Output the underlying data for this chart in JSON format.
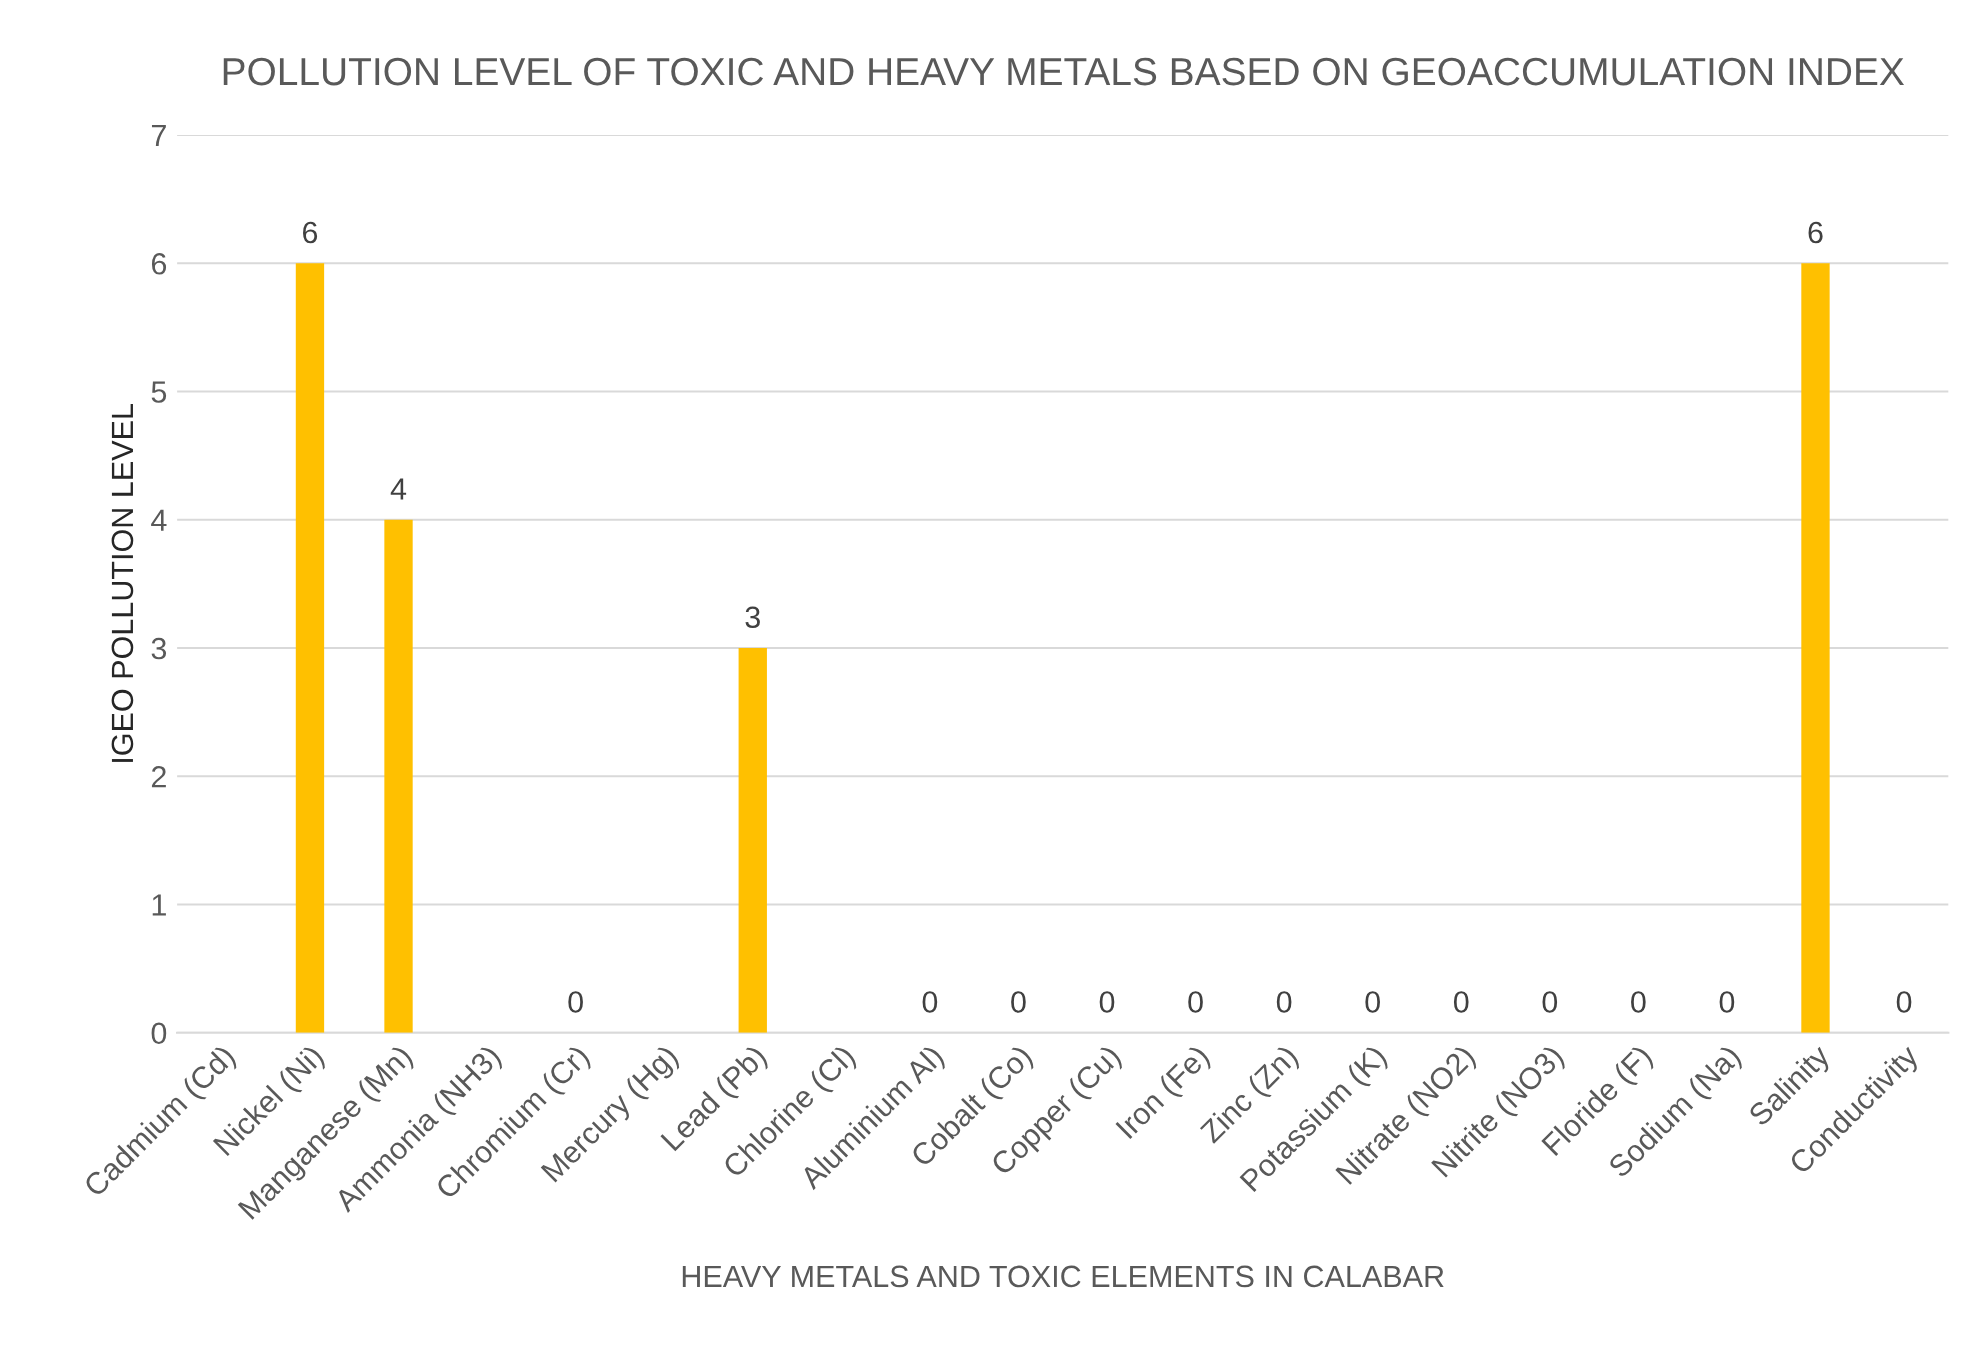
{
  "chart_data": {
    "type": "bar",
    "title": "POLLUTION LEVEL OF TOXIC AND HEAVY METALS BASED ON GEOACCUMULATION INDEX",
    "xlabel": "HEAVY METALS AND TOXIC ELEMENTS IN CALABAR",
    "ylabel": "IGEO POLLUTION LEVEL",
    "categories": [
      "Cadmium (Cd)",
      "Nickel (Ni)",
      "Manganese (Mn)",
      "Ammonia (NH3)",
      "Chromium (Cr)",
      "Mercury (Hg)",
      "Lead (Pb)",
      "Chlorine (Cl)",
      "Aluminium Al)",
      "Cobalt (Co)",
      "Copper (Cu)",
      "Iron (Fe)",
      "Zinc (Zn)",
      "Potassium (K)",
      "Nitrate (NO2)",
      "Nitrite (NO3)",
      "Floride (F)",
      "Sodium (Na)",
      "Salinity",
      "Conductivity"
    ],
    "values": [
      null,
      6,
      4,
      null,
      0,
      null,
      3,
      null,
      0,
      0,
      0,
      0,
      0,
      0,
      0,
      0,
      0,
      0,
      6,
      0
    ],
    "color": "#ffc000",
    "ylim": [
      0,
      7
    ],
    "yticks": [
      0,
      1,
      2,
      3,
      4,
      5,
      6,
      7
    ],
    "grid": "y",
    "data_labels": true
  }
}
